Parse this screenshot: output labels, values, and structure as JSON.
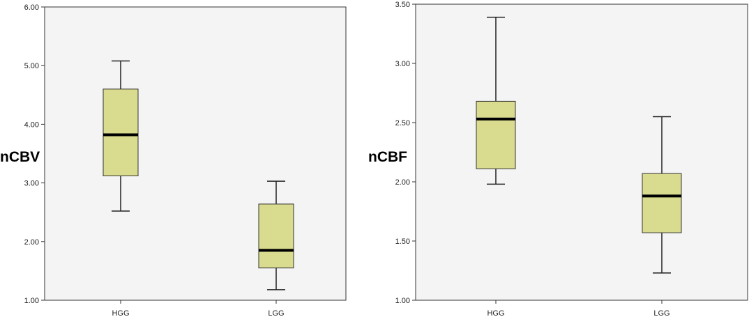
{
  "chart_data": [
    {
      "type": "box",
      "ylabel": "nCBV",
      "ylim": [
        1.0,
        6.0
      ],
      "yticks": [
        "1.00",
        "2.00",
        "3.00",
        "4.00",
        "5.00",
        "6.00"
      ],
      "categories": [
        "HGG",
        "LGG"
      ],
      "boxes": [
        {
          "category": "HGG",
          "min": 2.52,
          "q1": 3.12,
          "median": 3.82,
          "q3": 4.6,
          "max": 5.08
        },
        {
          "category": "LGG",
          "min": 1.18,
          "q1": 1.55,
          "median": 1.85,
          "q3": 2.64,
          "max": 3.03
        }
      ],
      "grid": false,
      "box_color": "#d9dc8e",
      "background": "#f3f4f3"
    },
    {
      "type": "box",
      "ylabel": "nCBF",
      "ylim": [
        1.0,
        3.5
      ],
      "yticks": [
        "1.00",
        "1.50",
        "2.00",
        "2.50",
        "3.00",
        "3.50"
      ],
      "categories": [
        "HGG",
        "LGG"
      ],
      "boxes": [
        {
          "category": "HGG",
          "min": 1.98,
          "q1": 2.11,
          "median": 2.53,
          "q3": 2.68,
          "max": 3.39
        },
        {
          "category": "LGG",
          "min": 1.23,
          "q1": 1.57,
          "median": 1.88,
          "q3": 2.07,
          "max": 2.55
        }
      ],
      "grid": false,
      "box_color": "#d9dc8e",
      "background": "#f3f4f3"
    }
  ]
}
